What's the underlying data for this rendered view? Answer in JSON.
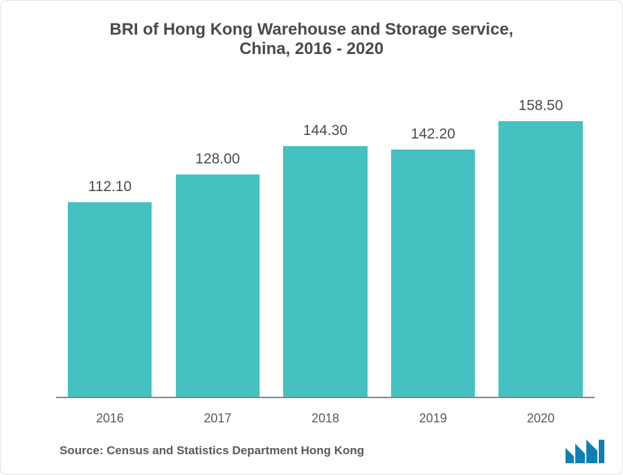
{
  "chart": {
    "type": "bar",
    "title_line1": "BRI of Hong Kong Warehouse and Storage service,",
    "title_line2": "China, 2016 - 2020",
    "title_fontsize": 24,
    "title_color": "#4a4a4a",
    "title_weight": "600",
    "categories": [
      "2016",
      "2017",
      "2018",
      "2019",
      "2020"
    ],
    "values": [
      112.1,
      128.0,
      144.3,
      142.2,
      158.5
    ],
    "value_labels": [
      "112.10",
      "128.00",
      "144.30",
      "142.20",
      "158.50"
    ],
    "bar_color": "#45c1c1",
    "value_label_color": "#4a4a4a",
    "value_label_fontsize": 21,
    "xaxis_label_color": "#5a5a5a",
    "xaxis_label_fontsize": 18,
    "axis_line_color": "#868686",
    "ylim_max": 180,
    "background_color": "#ffffff",
    "bar_width_ratio": 0.78
  },
  "source": {
    "text": "Source: Census and Statistics Department Hong Kong",
    "color": "#5a5a5a",
    "fontsize": 17
  },
  "logo": {
    "name": "mi-logo",
    "fill": "#0e7fb3"
  }
}
